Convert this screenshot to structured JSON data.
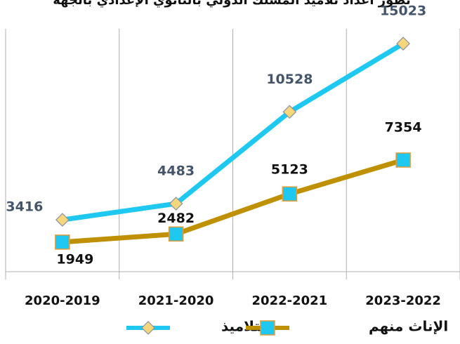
{
  "chart_data": {
    "type": "line",
    "title": "تطور أعداد تلاميذ المسلك الدولي بالثانوي الإعدادي بالجهة",
    "categories": [
      "2020-2019",
      "2021-2020",
      "2022-2021",
      "2023-2022"
    ],
    "ylim": [
      0,
      16000
    ],
    "series": [
      {
        "name": "التلاميذ",
        "color": "#1ec8f0",
        "marker": "diamond",
        "marker_color": "#f7d77c",
        "label_color": "#44546a",
        "values": [
          3416,
          4483,
          10528,
          15023
        ]
      },
      {
        "name": "الإناث منهم",
        "color": "#bf9000",
        "marker": "square",
        "marker_color": "#1ec8f0",
        "label_color": "#111111",
        "values": [
          1949,
          2482,
          5123,
          7354
        ]
      }
    ]
  }
}
